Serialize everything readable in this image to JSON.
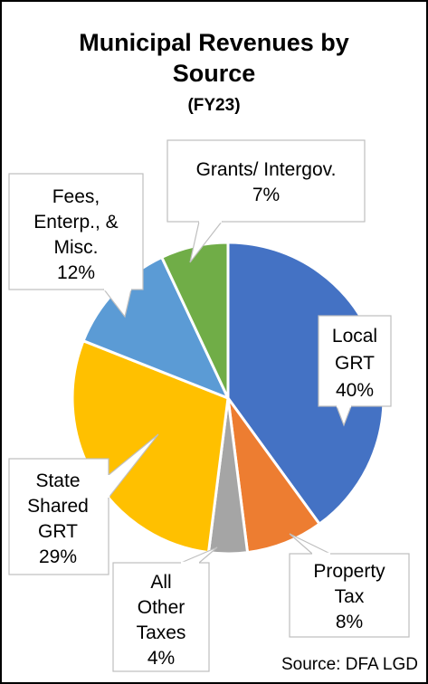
{
  "chart_data": {
    "type": "pie",
    "title_lines": [
      "Municipal Revenues by",
      "Source"
    ],
    "subtitle": "(FY23)",
    "source": "Source: DFA LGD",
    "slices": [
      {
        "label": "Local GRT",
        "label_lines": [
          "Local",
          "GRT",
          "40%"
        ],
        "value": 40,
        "color": "#4472C4"
      },
      {
        "label": "Property Tax",
        "label_lines": [
          "Property",
          "Tax",
          "8%"
        ],
        "value": 8,
        "color": "#ED7D31"
      },
      {
        "label": "All Other Taxes",
        "label_lines": [
          "All",
          "Other",
          "Taxes",
          "4%"
        ],
        "value": 4,
        "color": "#A5A5A5"
      },
      {
        "label": "State Shared GRT",
        "label_lines": [
          "State",
          "Shared",
          "GRT",
          "29%"
        ],
        "value": 29,
        "color": "#FFC000"
      },
      {
        "label": "Fees, Enterp., & Misc.",
        "label_lines": [
          "Fees,",
          "Enterp., &",
          "Misc.",
          "12%"
        ],
        "value": 12,
        "color": "#5B9BD5"
      },
      {
        "label": "Grants/ Intergov.",
        "label_lines": [
          "Grants/ Intergov.",
          "7%"
        ],
        "value": 7,
        "color": "#70AD47"
      }
    ]
  }
}
